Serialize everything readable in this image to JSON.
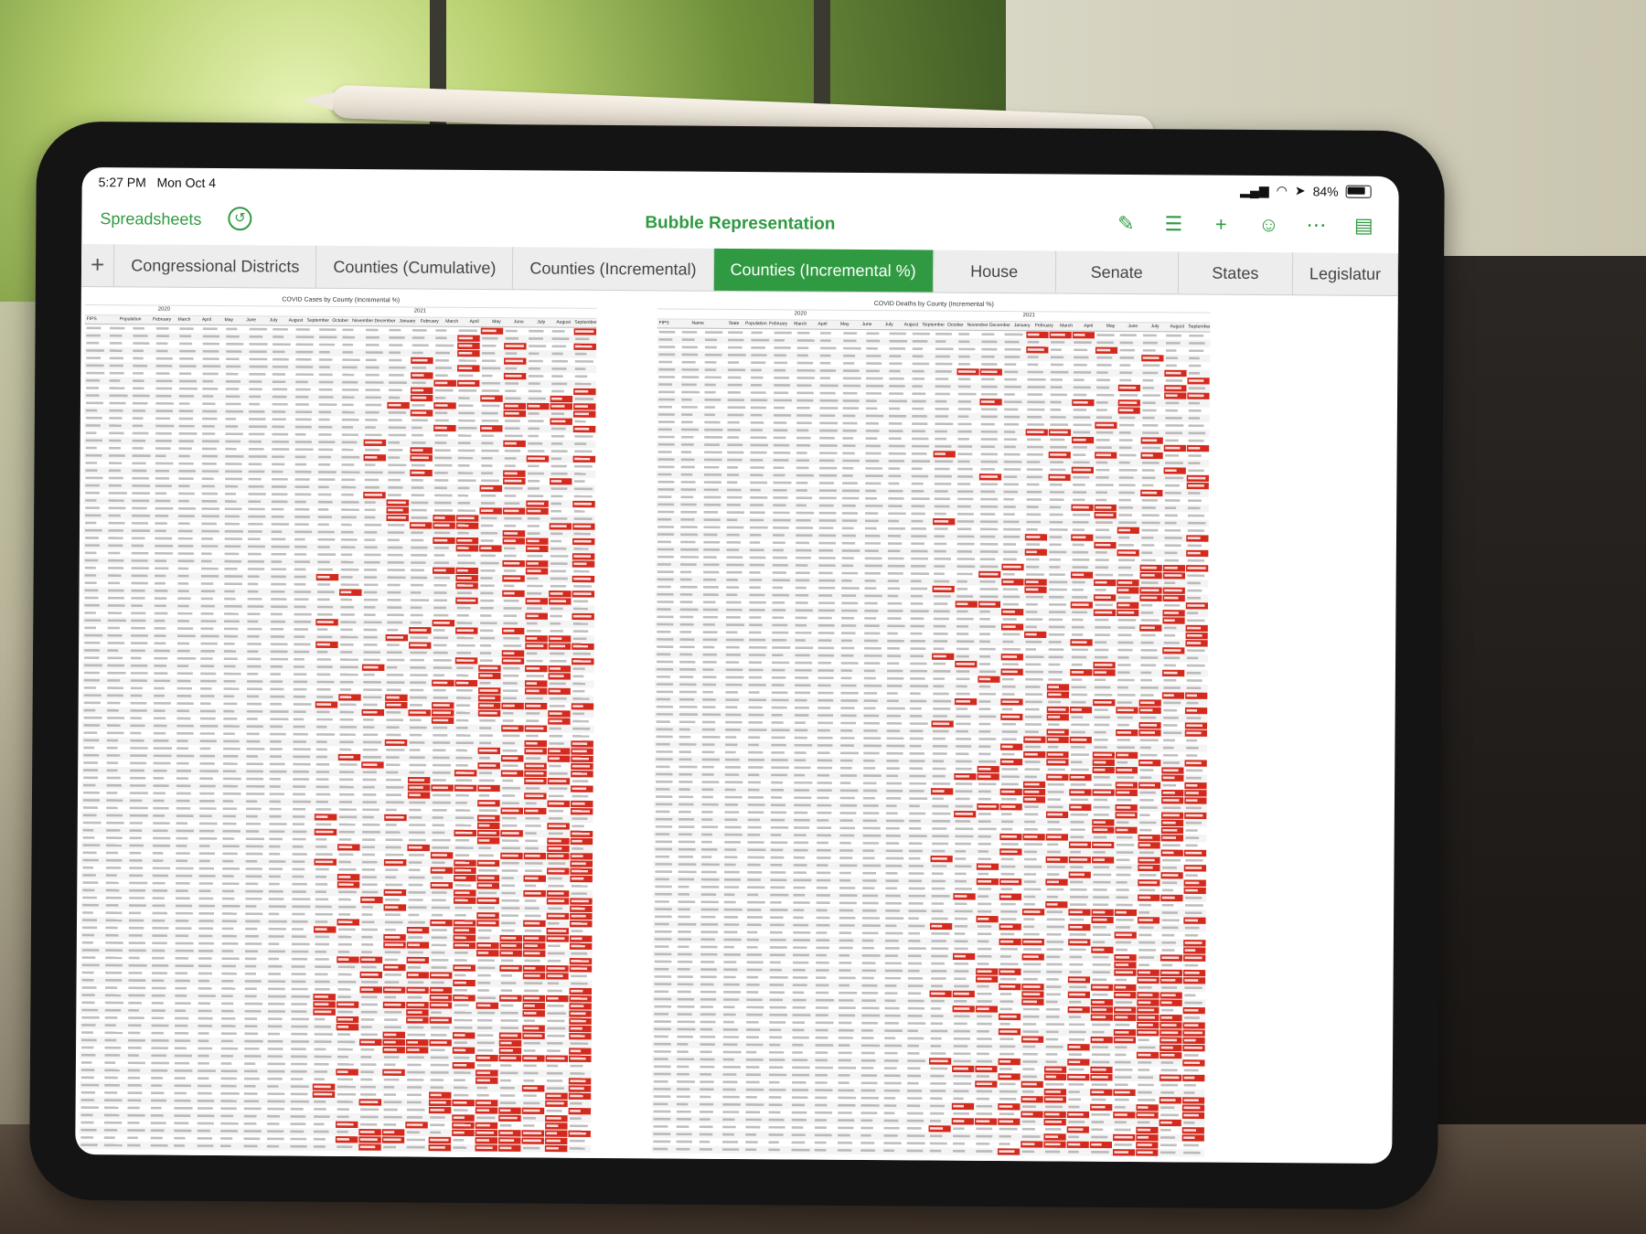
{
  "status_bar": {
    "time": "5:27 PM",
    "date": "Mon Oct 4",
    "battery": "84%"
  },
  "toolbar": {
    "back_label": "Spreadsheets",
    "title": "Bubble Representation",
    "icons": [
      "undo-icon",
      "paintbrush-icon",
      "format-icon",
      "plus-icon",
      "collaborate-icon",
      "more-icon",
      "document-icon"
    ]
  },
  "tabs": [
    {
      "label": "Congressional Districts",
      "active": false
    },
    {
      "label": "Counties (Cumulative)",
      "active": false
    },
    {
      "label": "Counties (Incremental)",
      "active": false
    },
    {
      "label": "Counties (Incremental %)",
      "active": true
    },
    {
      "label": "House",
      "active": false
    },
    {
      "label": "Senate",
      "active": false
    },
    {
      "label": "States",
      "active": false
    },
    {
      "label": "Legislatur",
      "active": false
    }
  ],
  "left_table": {
    "title": "COVID Cases by County (Incremental %)",
    "year_2020": "2020",
    "year_2021": "2021",
    "columns": [
      "FIPS",
      "Population",
      "February",
      "March",
      "April",
      "May",
      "June",
      "July",
      "August",
      "September",
      "October",
      "November",
      "December",
      "January",
      "February",
      "March",
      "April",
      "May",
      "June",
      "July",
      "August",
      "September"
    ]
  },
  "right_table": {
    "title": "COVID Deaths by County (Incremental %)",
    "year_2020": "2020",
    "year_2021": "2021",
    "columns": [
      "FIPS",
      "Name",
      "State",
      "Population",
      "February",
      "March",
      "April",
      "May",
      "June",
      "July",
      "August",
      "September",
      "October",
      "November",
      "December",
      "January",
      "February",
      "March",
      "April",
      "May",
      "June",
      "July",
      "August",
      "September"
    ]
  },
  "colors": {
    "accent_green": "#2f9a41",
    "highlight_red": "#d42a1e"
  }
}
